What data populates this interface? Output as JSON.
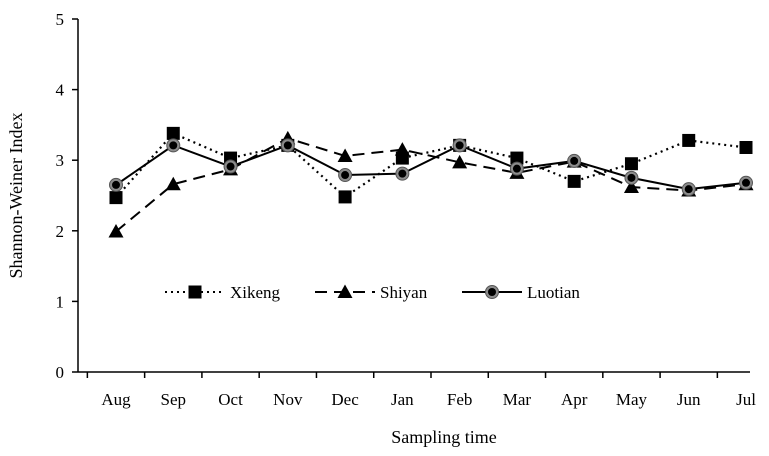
{
  "chart_data": {
    "type": "line",
    "title": "",
    "xlabel": "Sampling time",
    "ylabel": "Shannon-Weiner Index",
    "ylim": [
      0,
      5
    ],
    "yticks": [
      "0",
      "1",
      "2",
      "3",
      "4",
      "5"
    ],
    "grid": false,
    "legend_position": "middle-left",
    "categories": [
      "Aug",
      "Sep",
      "Oct",
      "Nov",
      "Dec",
      "Jan",
      "Feb",
      "Mar",
      "Apr",
      "May",
      "Jun",
      "Jul"
    ],
    "series": [
      {
        "name": "Xikeng",
        "line_style": "dotted",
        "marker": "square",
        "color": "#000000",
        "values": [
          2.47,
          3.38,
          3.03,
          3.21,
          2.48,
          3.03,
          3.21,
          3.03,
          2.7,
          2.95,
          3.28,
          3.18
        ]
      },
      {
        "name": "Shiyan",
        "line_style": "dashed",
        "marker": "triangle",
        "color": "#000000",
        "values": [
          1.99,
          2.66,
          2.87,
          3.31,
          3.06,
          3.15,
          2.97,
          2.82,
          2.98,
          2.62,
          2.57,
          2.66
        ]
      },
      {
        "name": "Luotian",
        "line_style": "solid",
        "marker": "circle",
        "color": "#000000",
        "marker_fill": "#8c8c8c",
        "values": [
          2.65,
          3.21,
          2.91,
          3.21,
          2.79,
          2.81,
          3.21,
          2.88,
          2.99,
          2.75,
          2.59,
          2.68
        ]
      }
    ]
  }
}
